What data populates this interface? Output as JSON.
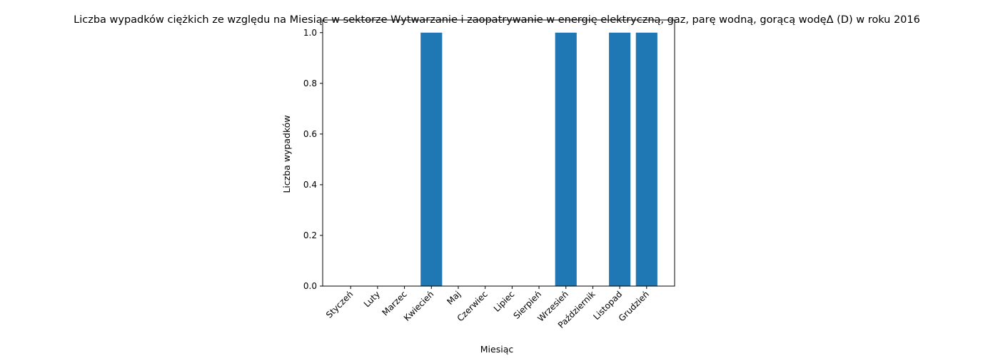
{
  "chart_data": {
    "type": "bar",
    "title": "Liczba wypadków ciężkich ze względu na Miesiąc w sektorze Wytwarzanie i zaopatrywanie w energię elektryczną, gaz, parę wodną, gorącą wodęΔ  (D) w roku 2016",
    "xlabel": "Miesiąc",
    "ylabel": "Liczba wypadków",
    "categories": [
      "Styczeń",
      "Luty",
      "Marzec",
      "Kwiecień",
      "Maj",
      "Czerwiec",
      "Lipiec",
      "Sierpień",
      "Wrzesień",
      "Październik",
      "Listopad",
      "Grudzień"
    ],
    "values": [
      0,
      0,
      0,
      1,
      0,
      0,
      0,
      0,
      1,
      0,
      1,
      1
    ],
    "ylim": [
      0,
      1.05
    ],
    "yticks": [
      "0.0",
      "0.2",
      "0.4",
      "0.6",
      "0.8",
      "1.0"
    ],
    "bar_color": "#1f77b4",
    "grid": false,
    "legend": "none"
  }
}
